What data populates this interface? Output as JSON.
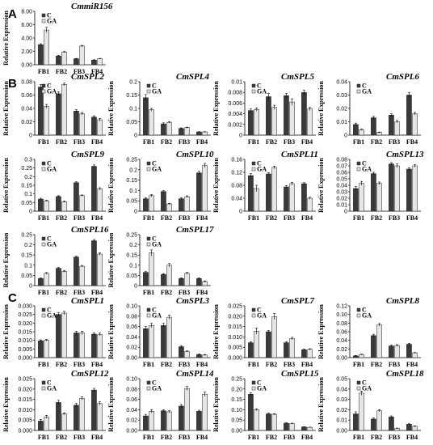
{
  "panels": [
    {
      "letter": "A"
    },
    {
      "letter": "B"
    },
    {
      "letter": "C"
    }
  ],
  "colors": {
    "C": "#3a3a3a",
    "GA": "#e6e6e6",
    "axis": "#000000"
  },
  "chart_data": [
    {
      "type": "bar",
      "panel": "A",
      "title": "CmmiR156",
      "ylabel": "Relative Expression",
      "categories": [
        "FB1",
        "FB2",
        "FB3",
        "FB4"
      ],
      "ylim": [
        0,
        8
      ],
      "yticks": [
        "0.00",
        "2.00",
        "4.00",
        "6.00",
        "8.00"
      ],
      "series": [
        {
          "name": "C",
          "values": [
            3.0,
            1.3,
            0.9,
            0.7
          ],
          "errors": [
            0.15,
            0.1,
            0.05,
            0.05
          ]
        },
        {
          "name": "GA",
          "values": [
            5.2,
            1.9,
            2.8,
            0.9
          ],
          "errors": [
            0.4,
            0.1,
            0.1,
            0.05
          ]
        }
      ]
    },
    {
      "type": "bar",
      "panel": "B",
      "title": "CmSPL2",
      "ylabel": "Relative Expression",
      "categories": [
        "FB1",
        "FB2",
        "FB3",
        "FB4"
      ],
      "ylim": [
        0,
        0.08
      ],
      "yticks": [
        "0",
        "0.02",
        "0.04",
        "0.06",
        "0.08"
      ],
      "series": [
        {
          "name": "C",
          "values": [
            0.072,
            0.062,
            0.036,
            0.027
          ],
          "errors": [
            0.004,
            0.003,
            0.002,
            0.002
          ]
        },
        {
          "name": "GA",
          "values": [
            0.043,
            0.076,
            0.032,
            0.023
          ],
          "errors": [
            0.003,
            0.002,
            0.002,
            0.002
          ]
        }
      ]
    },
    {
      "type": "bar",
      "panel": "B",
      "title": "CmSPL4",
      "ylabel": "Relative Expression",
      "categories": [
        "FB1",
        "FB2",
        "FB3",
        "FB4"
      ],
      "ylim": [
        0,
        0.2
      ],
      "yticks": [
        "0",
        "0.05",
        "0.1",
        "0.15",
        "0.2"
      ],
      "series": [
        {
          "name": "C",
          "values": [
            0.14,
            0.042,
            0.025,
            0.012
          ],
          "errors": [
            0.012,
            0.004,
            0.002,
            0.001
          ]
        },
        {
          "name": "GA",
          "values": [
            0.095,
            0.048,
            0.028,
            0.012
          ],
          "errors": [
            0.005,
            0.003,
            0.002,
            0.001
          ]
        }
      ]
    },
    {
      "type": "bar",
      "panel": "B",
      "title": "CmSPL5",
      "ylabel": "Relative Expression",
      "categories": [
        "FB1",
        "FB2",
        "FB3",
        "FB4"
      ],
      "ylim": [
        0,
        0.01
      ],
      "yticks": [
        "0",
        "0.002",
        "0.004",
        "0.006",
        "0.008",
        "0.01"
      ],
      "series": [
        {
          "name": "C",
          "values": [
            0.0046,
            0.0072,
            0.0074,
            0.008
          ],
          "errors": [
            0.0003,
            0.0006,
            0.0004,
            0.0004
          ]
        },
        {
          "name": "GA",
          "values": [
            0.0048,
            0.0052,
            0.0062,
            0.0049
          ],
          "errors": [
            0.0003,
            0.0004,
            0.0006,
            0.0003
          ]
        }
      ]
    },
    {
      "type": "bar",
      "panel": "B",
      "title": "CmSPL6",
      "ylabel": "Relative Expression",
      "categories": [
        "FB1",
        "FB2",
        "FB3",
        "FB4"
      ],
      "ylim": [
        0,
        0.04
      ],
      "yticks": [
        "0",
        "0.01",
        "0.02",
        "0.03",
        "0.04"
      ],
      "series": [
        {
          "name": "C",
          "values": [
            0.008,
            0.013,
            0.015,
            0.03
          ],
          "errors": [
            0.001,
            0.001,
            0.001,
            0.002
          ]
        },
        {
          "name": "GA",
          "values": [
            0.004,
            0.002,
            0.01,
            0.016
          ],
          "errors": [
            0.0005,
            0.0003,
            0.001,
            0.001
          ]
        }
      ]
    },
    {
      "type": "bar",
      "panel": "B",
      "title": "CmSPL9",
      "ylabel": "Relative Expression",
      "categories": [
        "FB1",
        "FB2",
        "FB3",
        "FB4"
      ],
      "ylim": [
        0,
        0.3
      ],
      "yticks": [
        "0",
        "0.05",
        "0.1",
        "0.15",
        "0.2",
        "0.25",
        "0.3"
      ],
      "series": [
        {
          "name": "C",
          "values": [
            0.07,
            0.085,
            0.165,
            0.26
          ],
          "errors": [
            0.005,
            0.005,
            0.005,
            0.008
          ]
        },
        {
          "name": "GA",
          "values": [
            0.06,
            0.055,
            0.09,
            0.13
          ],
          "errors": [
            0.004,
            0.004,
            0.004,
            0.006
          ]
        }
      ]
    },
    {
      "type": "bar",
      "panel": "B",
      "title": "CmSPL10",
      "ylabel": "Relative Expression",
      "categories": [
        "FB1",
        "FB2",
        "FB3",
        "FB4"
      ],
      "ylim": [
        0,
        0.25
      ],
      "yticks": [
        "0",
        "0.05",
        "0.1",
        "0.15",
        "0.2",
        "0.25"
      ],
      "series": [
        {
          "name": "C",
          "values": [
            0.06,
            0.095,
            0.06,
            0.185
          ],
          "errors": [
            0.005,
            0.004,
            0.004,
            0.008
          ]
        },
        {
          "name": "GA",
          "values": [
            0.075,
            0.035,
            0.07,
            0.22
          ],
          "errors": [
            0.006,
            0.003,
            0.004,
            0.01
          ]
        }
      ]
    },
    {
      "type": "bar",
      "panel": "B",
      "title": "CmSPL11",
      "ylabel": "Relative Expression",
      "categories": [
        "FB1",
        "FB2",
        "FB3",
        "FB4"
      ],
      "ylim": [
        0,
        0.16
      ],
      "yticks": [
        "0",
        "0.04",
        "0.08",
        "0.12",
        "0.16"
      ],
      "series": [
        {
          "name": "C",
          "values": [
            0.11,
            0.115,
            0.075,
            0.085
          ],
          "errors": [
            0.006,
            0.004,
            0.004,
            0.003
          ]
        },
        {
          "name": "GA",
          "values": [
            0.07,
            0.135,
            0.085,
            0.04
          ],
          "errors": [
            0.01,
            0.004,
            0.004,
            0.003
          ]
        }
      ]
    },
    {
      "type": "bar",
      "panel": "B",
      "title": "CmSPL13",
      "ylabel": "Relative Expression",
      "categories": [
        "FB1",
        "FB2",
        "FB3",
        "FB4"
      ],
      "ylim": [
        0,
        0.08
      ],
      "yticks": [
        "0",
        "0.01",
        "0.02",
        "0.03",
        "0.04",
        "0.05",
        "0.06",
        "0.07",
        "0.08"
      ],
      "series": [
        {
          "name": "C",
          "values": [
            0.035,
            0.058,
            0.073,
            0.065
          ],
          "errors": [
            0.003,
            0.002,
            0.002,
            0.002
          ]
        },
        {
          "name": "GA",
          "values": [
            0.043,
            0.043,
            0.07,
            0.07
          ],
          "errors": [
            0.003,
            0.002,
            0.003,
            0.002
          ]
        }
      ]
    },
    {
      "type": "bar",
      "panel": "B",
      "title": "CmSPL16",
      "ylabel": "Relative Expression",
      "categories": [
        "FB1",
        "FB2",
        "FB3",
        "FB4"
      ],
      "ylim": [
        0,
        0.25
      ],
      "yticks": [
        "0",
        "0.05",
        "0.1",
        "0.15",
        "0.2",
        "0.25"
      ],
      "series": [
        {
          "name": "C",
          "values": [
            0.035,
            0.085,
            0.14,
            0.22
          ],
          "errors": [
            0.003,
            0.004,
            0.004,
            0.006
          ]
        },
        {
          "name": "GA",
          "values": [
            0.06,
            0.07,
            0.095,
            0.155
          ],
          "errors": [
            0.004,
            0.004,
            0.004,
            0.006
          ]
        }
      ]
    },
    {
      "type": "bar",
      "panel": "B",
      "title": "CmSPL17",
      "ylabel": "Relative Expression",
      "categories": [
        "FB1",
        "FB2",
        "FB3",
        "FB4"
      ],
      "ylim": [
        0,
        0.25
      ],
      "yticks": [
        "0",
        "0.05",
        "0.1",
        "0.15",
        "0.2",
        "0.25"
      ],
      "series": [
        {
          "name": "C",
          "values": [
            0.065,
            0.055,
            0.035,
            0.035
          ],
          "errors": [
            0.004,
            0.004,
            0.003,
            0.003
          ]
        },
        {
          "name": "GA",
          "values": [
            0.16,
            0.1,
            0.06,
            0.02
          ],
          "errors": [
            0.015,
            0.008,
            0.005,
            0.003
          ]
        }
      ]
    },
    {
      "type": "bar",
      "panel": "C",
      "title": "CmSPL1",
      "ylabel": "Relative Expression",
      "categories": [
        "FB1",
        "FB2",
        "FB3",
        "FB4"
      ],
      "ylim": [
        0,
        0.03
      ],
      "yticks": [
        "0.000",
        "0.005",
        "0.010",
        "0.015",
        "0.020",
        "0.025",
        "0.030"
      ],
      "series": [
        {
          "name": "C",
          "values": [
            0.0098,
            0.025,
            0.0143,
            0.0136
          ],
          "errors": [
            0.0005,
            0.001,
            0.001,
            0.0008
          ]
        },
        {
          "name": "GA",
          "values": [
            0.0101,
            0.0258,
            0.0143,
            0.0134
          ],
          "errors": [
            0.0005,
            0.001,
            0.001,
            0.0008
          ]
        }
      ]
    },
    {
      "type": "bar",
      "panel": "C",
      "title": "CmSPL3",
      "ylabel": "Relative Expression",
      "categories": [
        "FB1",
        "FB2",
        "FB3",
        "FB4"
      ],
      "ylim": [
        0,
        0.1
      ],
      "yticks": [
        "0.00",
        "0.02",
        "0.04",
        "0.06",
        "0.08",
        "0.10"
      ],
      "series": [
        {
          "name": "C",
          "values": [
            0.056,
            0.062,
            0.021,
            0.006
          ],
          "errors": [
            0.004,
            0.004,
            0.002,
            0.001
          ]
        },
        {
          "name": "GA",
          "values": [
            0.062,
            0.078,
            0.012,
            0.005
          ],
          "errors": [
            0.004,
            0.004,
            0.001,
            0.001
          ]
        }
      ]
    },
    {
      "type": "bar",
      "panel": "C",
      "title": "CmSPL7",
      "ylabel": "Relative Expression",
      "categories": [
        "FB1",
        "FB2",
        "FB3",
        "FB4"
      ],
      "ylim": [
        0,
        0.025
      ],
      "yticks": [
        "0.000",
        "0.005",
        "0.010",
        "0.015",
        "0.020",
        "0.025"
      ],
      "series": [
        {
          "name": "C",
          "values": [
            0.0072,
            0.0125,
            0.0072,
            0.0038
          ],
          "errors": [
            0.0005,
            0.0006,
            0.0005,
            0.0003
          ]
        },
        {
          "name": "GA",
          "values": [
            0.0128,
            0.0198,
            0.0092,
            0.004
          ],
          "errors": [
            0.0015,
            0.0015,
            0.0006,
            0.0003
          ]
        }
      ]
    },
    {
      "type": "bar",
      "panel": "C",
      "title": "CmSPL8",
      "ylabel": "Relative Expression",
      "categories": [
        "FB1",
        "FB2",
        "FB3",
        "FB4"
      ],
      "ylim": [
        0,
        0.12
      ],
      "yticks": [
        "0.00",
        "0.02",
        "0.04",
        "0.06",
        "0.08",
        "0.10",
        "0.12"
      ],
      "series": [
        {
          "name": "C",
          "values": [
            0.004,
            0.051,
            0.027,
            0.031
          ],
          "errors": [
            0.001,
            0.003,
            0.002,
            0.002
          ]
        },
        {
          "name": "GA",
          "values": [
            0.007,
            0.076,
            0.028,
            0.011
          ],
          "errors": [
            0.001,
            0.003,
            0.002,
            0.001
          ]
        }
      ]
    },
    {
      "type": "bar",
      "panel": "C",
      "title": "CmSPL12",
      "ylabel": "Relative Expression",
      "categories": [
        "FB1",
        "FB2",
        "FB3",
        "FB4"
      ],
      "ylim": [
        0,
        0.025
      ],
      "yticks": [
        "0.000",
        "0.005",
        "0.010",
        "0.015",
        "0.020",
        "0.025"
      ],
      "series": [
        {
          "name": "C",
          "values": [
            0.0045,
            0.0135,
            0.0122,
            0.0195
          ],
          "errors": [
            0.0008,
            0.001,
            0.0008,
            0.0008
          ]
        },
        {
          "name": "GA",
          "values": [
            0.0065,
            0.008,
            0.0155,
            0.013
          ],
          "errors": [
            0.0008,
            0.0005,
            0.0008,
            0.0008
          ]
        }
      ]
    },
    {
      "type": "bar",
      "panel": "C",
      "title": "CmSPL14",
      "ylabel": "Relative Expression",
      "categories": [
        "FB1",
        "FB2",
        "FB3",
        "FB4"
      ],
      "ylim": [
        0,
        0.1
      ],
      "yticks": [
        "0.00",
        "0.02",
        "0.04",
        "0.06",
        "0.08",
        "0.10"
      ],
      "series": [
        {
          "name": "C",
          "values": [
            0.028,
            0.038,
            0.047,
            0.037
          ],
          "errors": [
            0.003,
            0.002,
            0.003,
            0.002
          ]
        },
        {
          "name": "GA",
          "values": [
            0.037,
            0.036,
            0.081,
            0.07
          ],
          "errors": [
            0.003,
            0.002,
            0.004,
            0.004
          ]
        }
      ]
    },
    {
      "type": "bar",
      "panel": "C",
      "title": "CmSPL15",
      "ylabel": "Relative Expression",
      "categories": [
        "FB1",
        "FB2",
        "FB3",
        "FB4"
      ],
      "ylim": [
        0,
        0.25
      ],
      "yticks": [
        "0.00",
        "0.05",
        "0.10",
        "0.15",
        "0.20",
        "0.25"
      ],
      "series": [
        {
          "name": "C",
          "values": [
            0.175,
            0.08,
            0.035,
            0.017
          ],
          "errors": [
            0.007,
            0.003,
            0.002,
            0.001
          ]
        },
        {
          "name": "GA",
          "values": [
            0.1,
            0.078,
            0.033,
            0.015
          ],
          "errors": [
            0.005,
            0.003,
            0.002,
            0.001
          ]
        }
      ]
    },
    {
      "type": "bar",
      "panel": "C",
      "title": "CmSPL18",
      "ylabel": "Relative Expression",
      "categories": [
        "FB1",
        "FB2",
        "FB3",
        "FB4"
      ],
      "ylim": [
        0,
        0.05
      ],
      "yticks": [
        "0.00",
        "0.01",
        "0.02",
        "0.03",
        "0.04",
        "0.05"
      ],
      "series": [
        {
          "name": "C",
          "values": [
            0.016,
            0.011,
            0.013,
            0.006
          ],
          "errors": [
            0.002,
            0.001,
            0.001,
            0.0005
          ]
        },
        {
          "name": "GA",
          "values": [
            0.036,
            0.019,
            0.002,
            0.004
          ],
          "errors": [
            0.002,
            0.001,
            0.0003,
            0.0004
          ]
        }
      ]
    }
  ]
}
